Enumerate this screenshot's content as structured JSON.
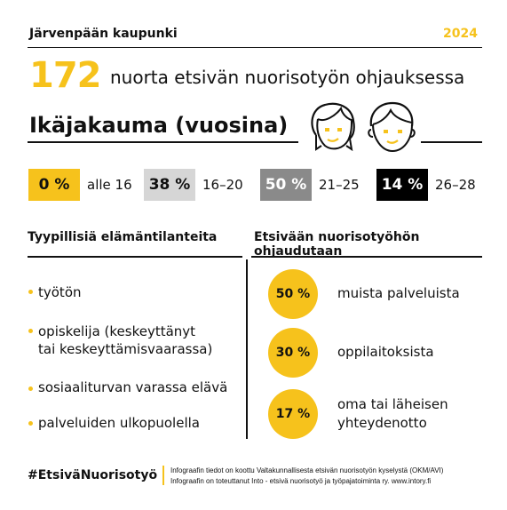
{
  "header": {
    "org": "Järvenpään kaupunki",
    "year": "2024"
  },
  "headline": {
    "number": "172",
    "text": "nuorta etsivän nuorisotyön ohjauksessa"
  },
  "age": {
    "title": "Ikäjakauma (vuosina)",
    "groups": [
      {
        "percent": "0 %",
        "range": "alle 16",
        "bg": "#f6c21c",
        "fg": "#111111"
      },
      {
        "percent": "38 %",
        "range": "16–20",
        "bg": "#d6d6d6",
        "fg": "#111111"
      },
      {
        "percent": "50 %",
        "range": "21–25",
        "bg": "#8a8a8a",
        "fg": "#ffffff"
      },
      {
        "percent": "14 %",
        "range": "26–28",
        "bg": "#000000",
        "fg": "#ffffff"
      }
    ]
  },
  "left": {
    "title": "Tyypillisiä elämäntilanteita",
    "items": [
      "työtön",
      "opiskelija (keskeyttänyt\ntai keskeyttämisvaarassa)",
      "sosiaaliturvan varassa elävä",
      "palveluiden ulkopuolella"
    ]
  },
  "right": {
    "title": "Etsivään nuorisotyöhön ohjaudutaan",
    "items": [
      {
        "percent": "50 %",
        "label": "muista palveluista"
      },
      {
        "percent": "30 %",
        "label": "oppilaitoksista"
      },
      {
        "percent": "17 %",
        "label": "oma tai läheisen\nyhteydenotto"
      }
    ]
  },
  "footer": {
    "hashtag": "#EtsiväNuorisotyö",
    "line1": "Infograafin tiedot on koottu Valtakunnallisesta etsivän nuorisotyön kyselystä (OKM/AVI)",
    "line2": "Infograafin on toteuttanut Into - etsivä nuorisotyö ja työpajatoiminta ry. www.intory.fi"
  },
  "colors": {
    "accent": "#f6c21c",
    "text": "#111111"
  },
  "icons": [
    "girl-face-icon",
    "boy-face-icon"
  ]
}
